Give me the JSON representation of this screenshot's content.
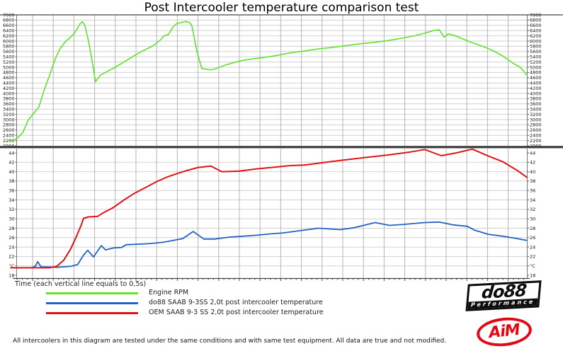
{
  "title": "Post Intercooler temperature comparison test",
  "x_axis_label": "Time (each vertical line equals to 0,5s)",
  "footer_note": "All intercoolers in this diagram are tested under the same conditions and with same test equipment. All data are true and not modified.",
  "legend": [
    {
      "label": "Engine RPM",
      "color": "#5fe32b"
    },
    {
      "label": "do88 SAAB 9-3SS 2,0t post intercooler temperature",
      "color": "#2363c4"
    },
    {
      "label": "OEM SAAB 9-3 SS 2,0t post intercooler temperature",
      "color": "#e11414"
    }
  ],
  "logos": {
    "do88": "do88",
    "do88_sub": "Performance",
    "aim": "AiM"
  },
  "chart_data": {
    "type": "line",
    "title": "Post Intercooler temperature comparison test",
    "time_total_seconds": 12.33,
    "seconds_per_gridline": 0.5,
    "grid": true,
    "legend_position": "bottom-left",
    "panels": [
      {
        "name": "engine-rpm",
        "ylim": [
          2000,
          7000
        ],
        "tick_step": 200,
        "tick_unit": "",
        "series": [
          {
            "name": "Engine RPM",
            "color": "#5fe32b",
            "width": 1.6,
            "points": [
              [
                -0.2,
                2200
              ],
              [
                -0.1,
                2210
              ],
              [
                0,
                2280
              ],
              [
                0.14,
                2500
              ],
              [
                0.27,
                2980
              ],
              [
                0.41,
                3250
              ],
              [
                0.53,
                3480
              ],
              [
                0.65,
                4100
              ],
              [
                0.79,
                4700
              ],
              [
                0.92,
                5300
              ],
              [
                1.04,
                5700
              ],
              [
                1.18,
                6000
              ],
              [
                1.25,
                6080
              ],
              [
                1.39,
                6300
              ],
              [
                1.52,
                6650
              ],
              [
                1.58,
                6740
              ],
              [
                1.64,
                6600
              ],
              [
                1.73,
                6000
              ],
              [
                1.82,
                5200
              ],
              [
                1.9,
                4450
              ],
              [
                2.02,
                4700
              ],
              [
                2.16,
                4820
              ],
              [
                2.33,
                4960
              ],
              [
                2.59,
                5200
              ],
              [
                2.84,
                5450
              ],
              [
                3.01,
                5600
              ],
              [
                3.27,
                5800
              ],
              [
                3.44,
                6000
              ],
              [
                3.56,
                6200
              ],
              [
                3.66,
                6250
              ],
              [
                3.78,
                6550
              ],
              [
                3.87,
                6680
              ],
              [
                3.97,
                6700
              ],
              [
                4.08,
                6750
              ],
              [
                4.18,
                6700
              ],
              [
                4.23,
                6580
              ],
              [
                4.35,
                5600
              ],
              [
                4.47,
                4950
              ],
              [
                4.69,
                4900
              ],
              [
                4.81,
                4950
              ],
              [
                5.07,
                5100
              ],
              [
                5.41,
                5250
              ],
              [
                5.75,
                5330
              ],
              [
                6.01,
                5380
              ],
              [
                6.27,
                5450
              ],
              [
                6.61,
                5550
              ],
              [
                6.95,
                5620
              ],
              [
                7.29,
                5700
              ],
              [
                7.64,
                5760
              ],
              [
                7.98,
                5830
              ],
              [
                8.32,
                5900
              ],
              [
                8.66,
                5950
              ],
              [
                9.01,
                6030
              ],
              [
                9.35,
                6120
              ],
              [
                9.61,
                6200
              ],
              [
                9.86,
                6300
              ],
              [
                10.07,
                6400
              ],
              [
                10.21,
                6430
              ],
              [
                10.33,
                6150
              ],
              [
                10.43,
                6270
              ],
              [
                10.55,
                6230
              ],
              [
                10.72,
                6120
              ],
              [
                10.98,
                5950
              ],
              [
                11.23,
                5820
              ],
              [
                11.49,
                5650
              ],
              [
                11.75,
                5430
              ],
              [
                12,
                5150
              ],
              [
                12.17,
                5000
              ],
              [
                12.33,
                4700
              ]
            ]
          }
        ]
      },
      {
        "name": "temperature",
        "ylim": [
          17.4,
          44.9
        ],
        "tick_min": 18,
        "tick_max": 44,
        "tick_step": 2,
        "tick_unit": "°C",
        "unit_replaces_value": 20,
        "series": [
          {
            "name": "do88 SAAB 9-3SS 2,0t post intercooler temperature",
            "color": "#2363c4",
            "width": 1.8,
            "points": [
              [
                -0.15,
                19.6
              ],
              [
                0,
                19.6
              ],
              [
                0.36,
                19.6
              ],
              [
                0.45,
                20
              ],
              [
                0.5,
                20.9
              ],
              [
                0.58,
                19.8
              ],
              [
                0.96,
                19.7
              ],
              [
                1.3,
                19.9
              ],
              [
                1.47,
                20.3
              ],
              [
                1.61,
                22.3
              ],
              [
                1.71,
                23.3
              ],
              [
                1.85,
                21.9
              ],
              [
                2.04,
                24.3
              ],
              [
                2.14,
                23.4
              ],
              [
                2.33,
                23.8
              ],
              [
                2.53,
                23.9
              ],
              [
                2.64,
                24.5
              ],
              [
                3.18,
                24.7
              ],
              [
                3.53,
                25
              ],
              [
                3.78,
                25.4
              ],
              [
                4.01,
                25.8
              ],
              [
                4.26,
                27.3
              ],
              [
                4.52,
                25.7
              ],
              [
                4.78,
                25.7
              ],
              [
                5.12,
                26.1
              ],
              [
                5.46,
                26.3
              ],
              [
                5.8,
                26.5
              ],
              [
                6.15,
                26.8
              ],
              [
                6.44,
                27
              ],
              [
                6.95,
                27.6
              ],
              [
                7.29,
                28
              ],
              [
                7.81,
                27.7
              ],
              [
                8.15,
                28.1
              ],
              [
                8.66,
                29.2
              ],
              [
                9.01,
                28.6
              ],
              [
                9.35,
                28.8
              ],
              [
                9.86,
                29.2
              ],
              [
                10.21,
                29.3
              ],
              [
                10.55,
                28.7
              ],
              [
                10.89,
                28.4
              ],
              [
                11.06,
                27.6
              ],
              [
                11.4,
                26.7
              ],
              [
                11.75,
                26.3
              ],
              [
                12.09,
                25.8
              ],
              [
                12.33,
                25.4
              ]
            ]
          },
          {
            "name": "OEM SAAB 9-3 SS 2,0t post intercooler temperature",
            "color": "#e11414",
            "width": 2,
            "points": [
              [
                -0.15,
                19.6
              ],
              [
                0,
                19.6
              ],
              [
                0.79,
                19.6
              ],
              [
                0.96,
                19.9
              ],
              [
                1.13,
                21.2
              ],
              [
                1.3,
                23.6
              ],
              [
                1.44,
                26.3
              ],
              [
                1.56,
                28.8
              ],
              [
                1.61,
                30.1
              ],
              [
                1.73,
                30.4
              ],
              [
                1.95,
                30.5
              ],
              [
                2.07,
                31.2
              ],
              [
                2.33,
                32.4
              ],
              [
                2.59,
                34
              ],
              [
                2.84,
                35.4
              ],
              [
                3.1,
                36.6
              ],
              [
                3.36,
                37.8
              ],
              [
                3.61,
                38.8
              ],
              [
                3.87,
                39.6
              ],
              [
                4.13,
                40.3
              ],
              [
                4.38,
                40.9
              ],
              [
                4.69,
                41.2
              ],
              [
                4.95,
                40
              ],
              [
                5.36,
                40.1
              ],
              [
                5.8,
                40.6
              ],
              [
                6.27,
                41
              ],
              [
                6.61,
                41.3
              ],
              [
                6.95,
                41.4
              ],
              [
                7.64,
                42.2
              ],
              [
                8.32,
                42.9
              ],
              [
                9.01,
                43.6
              ],
              [
                9.52,
                44.2
              ],
              [
                9.86,
                44.7
              ],
              [
                10.26,
                43.4
              ],
              [
                10.63,
                44
              ],
              [
                11.01,
                44.8
              ],
              [
                11.4,
                43.3
              ],
              [
                11.75,
                42.1
              ],
              [
                12.09,
                40.3
              ],
              [
                12.33,
                38.8
              ]
            ]
          }
        ]
      }
    ]
  }
}
